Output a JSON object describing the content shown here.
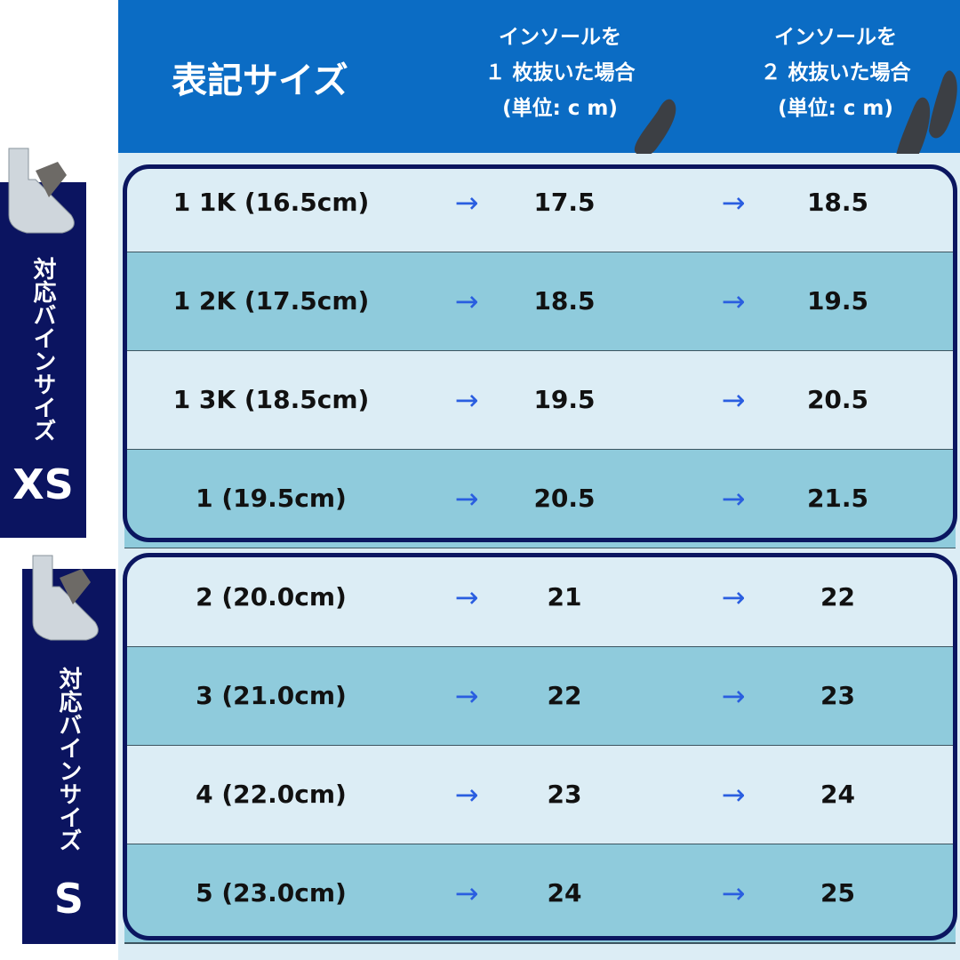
{
  "header": {
    "size_label": "表記サイズ",
    "col1": [
      "インソールを",
      "１ 枚抜いた場合",
      "(単位: c m)"
    ],
    "col2": [
      "インソールを",
      "２ 枚抜いた場合",
      "(単位: c m)"
    ]
  },
  "arrow": "→",
  "groups": [
    {
      "binding_label": "対応バインサイズ",
      "size": "XS"
    },
    {
      "binding_label": "対応バインサイズ",
      "size": "S"
    }
  ],
  "rows": [
    {
      "label": "1 1K (16.5cm)",
      "one": "17.5",
      "two": "18.5"
    },
    {
      "label": "1 2K (17.5cm)",
      "one": "18.5",
      "two": "19.5"
    },
    {
      "label": "1 3K (18.5cm)",
      "one": "19.5",
      "two": "20.5"
    },
    {
      "label": "1 (19.5cm)",
      "one": "20.5",
      "two": "21.5"
    },
    {
      "label": "2 (20.0cm)",
      "one": "21",
      "two": "22"
    },
    {
      "label": "3 (21.0cm)",
      "one": "22",
      "two": "23"
    },
    {
      "label": "4 (22.0cm)",
      "one": "23",
      "two": "24"
    },
    {
      "label": "5 (23.0cm)",
      "one": "24",
      "two": "25"
    }
  ],
  "colors": {
    "header": "#0b6cc4",
    "navy": "#0b1660",
    "row_light": "#dcedf5",
    "row_dark": "#8fcbdc",
    "arrow": "#2a5ee0"
  }
}
